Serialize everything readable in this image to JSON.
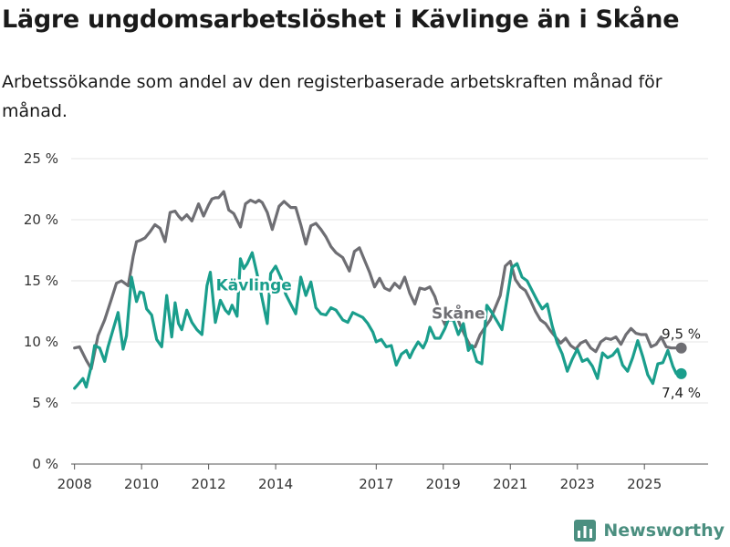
{
  "header": {
    "title": "Lägre ungdomsarbetslöshet i Kävlinge än i Skåne",
    "subtitle": "Arbetssökande som andel av den registerbaserade arbetskraften månad för månad."
  },
  "brand": {
    "name": "Newsworthy"
  },
  "chart_data": {
    "type": "line",
    "title": "Lägre ungdomsarbetslöshet i Kävlinge än i Skåne",
    "xlabel": "",
    "ylabel": "",
    "xlim": [
      2007.9,
      2026.9
    ],
    "ylim": [
      0,
      25
    ],
    "y_ticks": [
      0,
      5,
      10,
      15,
      20,
      25
    ],
    "y_tick_labels": [
      "0 %",
      "5 %",
      "10 %",
      "15 %",
      "20 %",
      "25 %"
    ],
    "x_ticks": [
      2008,
      2010,
      2012,
      2014,
      2017,
      2019,
      2021,
      2023,
      2025
    ],
    "x_tick_labels": [
      "2008",
      "2010",
      "2012",
      "2014",
      "2017",
      "2019",
      "2021",
      "2023",
      "2025"
    ],
    "grid": "horizontal",
    "series": [
      {
        "name": "Skåne",
        "color": "#6e6e73",
        "label": "Skåne",
        "label_at": [
          2019.45,
          11.9
        ],
        "end_label": "9,5 %",
        "x": [
          2008.0,
          2008.15,
          2008.35,
          2008.5,
          2008.7,
          2008.9,
          2009.1,
          2009.25,
          2009.4,
          2009.6,
          2009.75,
          2009.85,
          2009.95,
          2010.1,
          2010.25,
          2010.4,
          2010.55,
          2010.7,
          2010.85,
          2011.0,
          2011.1,
          2011.2,
          2011.35,
          2011.5,
          2011.7,
          2011.85,
          2012.0,
          2012.1,
          2012.2,
          2012.3,
          2012.45,
          2012.6,
          2012.75,
          2012.95,
          2013.1,
          2013.25,
          2013.4,
          2013.5,
          2013.6,
          2013.75,
          2013.9,
          2014.1,
          2014.25,
          2014.45,
          2014.6,
          2014.75,
          2014.9,
          2015.05,
          2015.2,
          2015.35,
          2015.5,
          2015.65,
          2015.8,
          2016.0,
          2016.2,
          2016.35,
          2016.5,
          2016.65,
          2016.8,
          2016.95,
          2017.1,
          2017.25,
          2017.4,
          2017.55,
          2017.7,
          2017.85,
          2018.0,
          2018.15,
          2018.3,
          2018.45,
          2018.6,
          2018.75,
          2018.9,
          2019.05,
          2019.2,
          2019.35,
          2019.5,
          2019.65,
          2019.8,
          2019.95,
          2020.1,
          2020.25,
          2020.4,
          2020.55,
          2020.7,
          2020.85,
          2021.0,
          2021.15,
          2021.3,
          2021.45,
          2021.6,
          2021.75,
          2021.9,
          2022.05,
          2022.2,
          2022.35,
          2022.5,
          2022.65,
          2022.8,
          2022.95,
          2023.1,
          2023.25,
          2023.4,
          2023.55,
          2023.7,
          2023.85,
          2024.0,
          2024.15,
          2024.3,
          2024.45,
          2024.6,
          2024.75,
          2024.9,
          2025.05,
          2025.2,
          2025.35,
          2025.5,
          2025.65,
          2025.8,
          2025.95,
          2026.1
        ],
        "values": [
          9.5,
          9.6,
          8.5,
          7.8,
          10.5,
          11.8,
          13.5,
          14.8,
          15.0,
          14.6,
          17.0,
          18.2,
          18.3,
          18.5,
          19.0,
          19.6,
          19.3,
          18.2,
          20.6,
          20.7,
          20.3,
          20.0,
          20.4,
          19.9,
          21.3,
          20.3,
          21.2,
          21.7,
          21.8,
          21.8,
          22.3,
          20.8,
          20.5,
          19.4,
          21.3,
          21.6,
          21.4,
          21.6,
          21.4,
          20.6,
          19.2,
          21.1,
          21.5,
          21.0,
          21.0,
          19.6,
          18.0,
          19.5,
          19.7,
          19.2,
          18.6,
          17.8,
          17.3,
          16.9,
          15.8,
          17.4,
          17.7,
          16.7,
          15.7,
          14.5,
          15.2,
          14.4,
          14.2,
          14.8,
          14.4,
          15.3,
          14.0,
          13.1,
          14.4,
          14.3,
          14.5,
          13.7,
          12.4,
          11.4,
          12.4,
          12.5,
          11.4,
          10.5,
          9.7,
          9.6,
          10.6,
          11.2,
          11.8,
          12.8,
          13.8,
          16.2,
          16.6,
          15.1,
          14.5,
          14.2,
          13.4,
          12.5,
          11.8,
          11.5,
          10.9,
          10.4,
          9.9,
          10.3,
          9.7,
          9.4,
          9.9,
          10.1,
          9.5,
          9.2,
          10.0,
          10.3,
          10.2,
          10.4,
          9.8,
          10.6,
          11.1,
          10.7,
          10.6,
          10.6,
          9.6,
          9.8,
          10.4,
          9.6,
          9.5,
          9.5,
          9.5
        ]
      },
      {
        "name": "Kävlinge",
        "color": "#1a9e8c",
        "label": "Kävlinge",
        "label_at": [
          2013.35,
          14.2
        ],
        "end_label": "7,4 %",
        "x": [
          2008.0,
          2008.1,
          2008.25,
          2008.35,
          2008.5,
          2008.6,
          2008.75,
          2008.9,
          2009.0,
          2009.15,
          2009.3,
          2009.45,
          2009.55,
          2009.7,
          2009.85,
          2009.95,
          2010.05,
          2010.15,
          2010.3,
          2010.45,
          2010.6,
          2010.75,
          2010.9,
          2011.0,
          2011.1,
          2011.2,
          2011.35,
          2011.5,
          2011.65,
          2011.8,
          2011.95,
          2012.05,
          2012.2,
          2012.35,
          2012.5,
          2012.6,
          2012.7,
          2012.85,
          2012.95,
          2013.05,
          2013.15,
          2013.3,
          2013.45,
          2013.6,
          2013.75,
          2013.85,
          2014.0,
          2014.15,
          2014.3,
          2014.45,
          2014.6,
          2014.75,
          2014.9,
          2015.05,
          2015.2,
          2015.35,
          2015.5,
          2015.65,
          2015.8,
          2016.0,
          2016.15,
          2016.3,
          2016.45,
          2016.6,
          2016.75,
          2016.9,
          2017.0,
          2017.15,
          2017.3,
          2017.45,
          2017.6,
          2017.75,
          2017.9,
          2018.0,
          2018.1,
          2018.25,
          2018.4,
          2018.5,
          2018.6,
          2018.75,
          2018.9,
          2019.05,
          2019.15,
          2019.3,
          2019.45,
          2019.6,
          2019.75,
          2019.85,
          2020.0,
          2020.15,
          2020.3,
          2020.45,
          2020.6,
          2020.75,
          2020.9,
          2021.05,
          2021.2,
          2021.35,
          2021.5,
          2021.65,
          2021.8,
          2021.95,
          2022.1,
          2022.25,
          2022.4,
          2022.55,
          2022.7,
          2022.85,
          2023.0,
          2023.15,
          2023.3,
          2023.45,
          2023.6,
          2023.75,
          2023.9,
          2024.05,
          2024.2,
          2024.35,
          2024.5,
          2024.65,
          2024.8,
          2024.95,
          2025.1,
          2025.25,
          2025.4,
          2025.55,
          2025.7,
          2025.85,
          2025.95,
          2026.1
        ],
        "values": [
          6.2,
          6.5,
          7.0,
          6.3,
          8.0,
          9.7,
          9.5,
          8.4,
          9.6,
          11.0,
          12.4,
          9.4,
          10.5,
          15.3,
          13.3,
          14.1,
          14.0,
          12.7,
          12.2,
          10.2,
          9.6,
          13.8,
          10.4,
          13.2,
          11.5,
          11.0,
          12.6,
          11.6,
          11.0,
          10.6,
          14.6,
          15.7,
          11.6,
          13.4,
          12.6,
          12.3,
          13.0,
          12.1,
          16.8,
          16.0,
          16.4,
          17.3,
          15.5,
          13.5,
          11.5,
          15.6,
          16.2,
          15.3,
          13.9,
          13.1,
          12.3,
          15.3,
          13.8,
          14.9,
          12.8,
          12.3,
          12.2,
          12.8,
          12.6,
          11.8,
          11.6,
          12.4,
          12.2,
          12.0,
          11.5,
          10.8,
          10.0,
          10.2,
          9.6,
          9.7,
          8.1,
          9.0,
          9.3,
          8.7,
          9.3,
          10.0,
          9.5,
          10.1,
          11.2,
          10.3,
          10.3,
          11.1,
          11.8,
          11.8,
          10.6,
          11.5,
          9.3,
          9.7,
          8.4,
          8.2,
          13.0,
          12.4,
          11.7,
          11.0,
          13.5,
          16.1,
          16.4,
          15.3,
          15.0,
          14.2,
          13.4,
          12.7,
          13.1,
          11.3,
          9.9,
          9.0,
          7.6,
          8.6,
          9.4,
          8.4,
          8.6,
          8.0,
          7.0,
          9.1,
          8.7,
          8.9,
          9.4,
          8.1,
          7.6,
          8.7,
          10.1,
          8.8,
          7.3,
          6.6,
          8.2,
          8.3,
          9.3,
          8.0,
          7.4,
          7.4
        ]
      }
    ]
  }
}
